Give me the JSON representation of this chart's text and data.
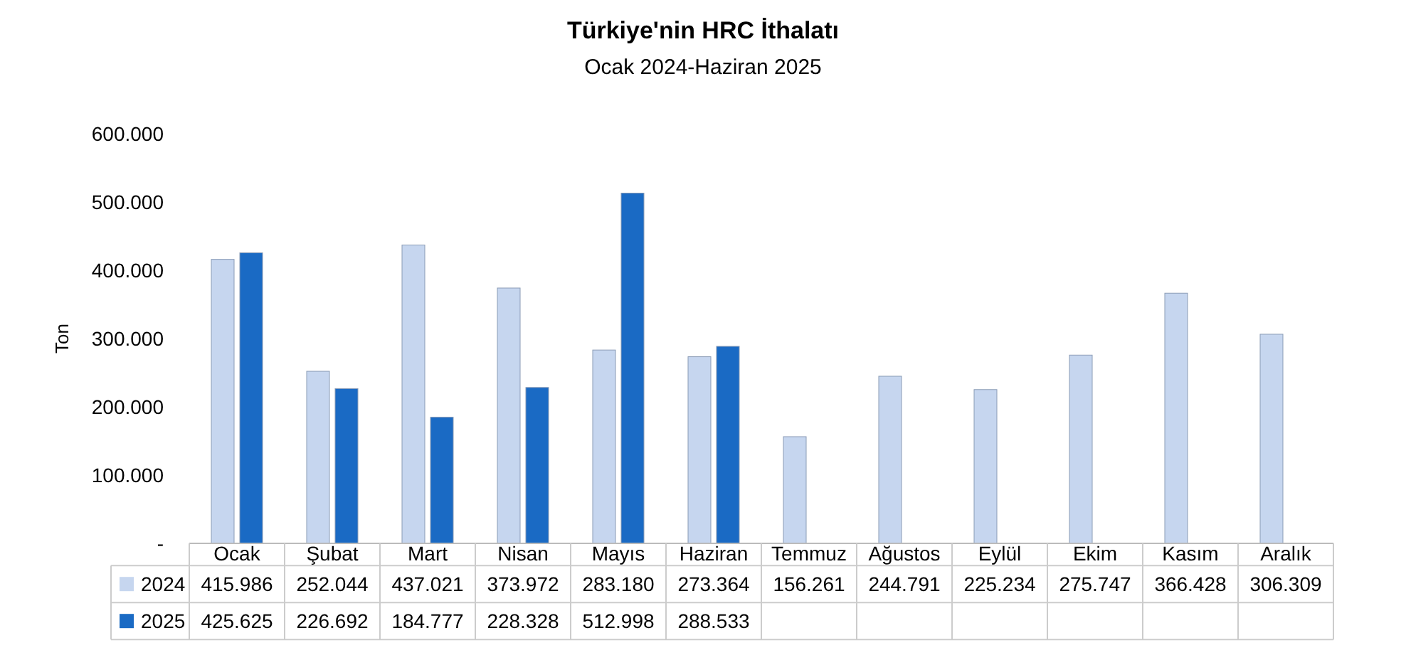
{
  "chart_data": {
    "type": "bar",
    "title": "Türkiye'nin  HRC İthalatı",
    "subtitle": "Ocak 2024-Haziran 2025",
    "ylabel": "Ton",
    "categories": [
      "Ocak",
      "Şubat",
      "Mart",
      "Nisan",
      "Mayıs",
      "Haziran",
      "Temmuz",
      "Ağustos",
      "Eylül",
      "Ekim",
      "Kasım",
      "Aralık"
    ],
    "series": [
      {
        "name": "2024",
        "color": "#c6d6ef",
        "values": [
          415986,
          252044,
          437021,
          373972,
          283180,
          273364,
          156261,
          244791,
          225234,
          275747,
          366428,
          306309
        ],
        "value_labels": [
          "415.986",
          "252.044",
          "437.021",
          "373.972",
          "283.180",
          "273.364",
          "156.261",
          "244.791",
          "225.234",
          "275.747",
          "366.428",
          "306.309"
        ]
      },
      {
        "name": "2025",
        "color": "#1a6ac4",
        "values": [
          425625,
          226692,
          184777,
          228328,
          512998,
          288533,
          null,
          null,
          null,
          null,
          null,
          null
        ],
        "value_labels": [
          "425.625",
          "226.692",
          "184.777",
          "228.328",
          "512.998",
          "288.533",
          null,
          null,
          null,
          null,
          null,
          null
        ]
      }
    ],
    "ylim": [
      0,
      600000
    ],
    "yticks": [
      {
        "value": 0,
        "label": "-"
      },
      {
        "value": 100000,
        "label": "100.000"
      },
      {
        "value": 200000,
        "label": "200.000"
      },
      {
        "value": 300000,
        "label": "300.000"
      },
      {
        "value": 400000,
        "label": "400.000"
      },
      {
        "value": 500000,
        "label": "500.000"
      },
      {
        "value": 600000,
        "label": "600.000"
      }
    ],
    "grid": false,
    "legend": "bottom"
  }
}
